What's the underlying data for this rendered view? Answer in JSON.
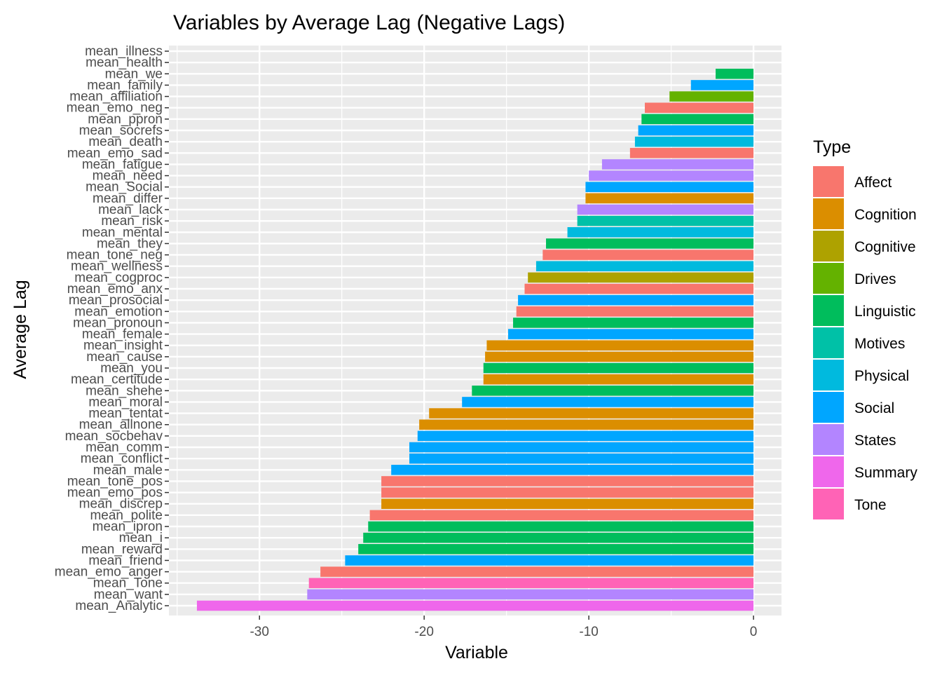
{
  "chart_data": {
    "type": "bar",
    "orientation": "horizontal",
    "title": "Variables by Average Lag (Negative Lags)",
    "xlabel": "Variable",
    "ylabel": "Average Lag",
    "xlim": [
      -35.5,
      1.7
    ],
    "x_ticks": [
      -30,
      -20,
      -10,
      0
    ],
    "grid": true,
    "legend": {
      "title": "Type",
      "position": "right",
      "items": [
        {
          "name": "Affect",
          "color": "#F8766D"
        },
        {
          "name": "Cognition",
          "color": "#DB8E00"
        },
        {
          "name": "Cognitive",
          "color": "#AEA200"
        },
        {
          "name": "Drives",
          "color": "#64B200"
        },
        {
          "name": "Linguistic",
          "color": "#00BD5C"
        },
        {
          "name": "Motives",
          "color": "#00C1A7"
        },
        {
          "name": "Physical",
          "color": "#00BADE"
        },
        {
          "name": "Social",
          "color": "#00A6FF"
        },
        {
          "name": "States",
          "color": "#B385FF"
        },
        {
          "name": "Summary",
          "color": "#EF67EB"
        },
        {
          "name": "Tone",
          "color": "#FF63B6"
        }
      ]
    },
    "categories": [
      "mean_illness",
      "mean_health",
      "mean_we",
      "mean_family",
      "mean_affiliation",
      "mean_emo_neg",
      "mean_ppron",
      "mean_socrefs",
      "mean_death",
      "mean_emo_sad",
      "mean_fatigue",
      "mean_need",
      "mean_Social",
      "mean_differ",
      "mean_lack",
      "mean_risk",
      "mean_mental",
      "mean_they",
      "mean_tone_neg",
      "mean_wellness",
      "mean_cogproc",
      "mean_emo_anx",
      "mean_prosocial",
      "mean_emotion",
      "mean_pronoun",
      "mean_female",
      "mean_insight",
      "mean_cause",
      "mean_you",
      "mean_certitude",
      "mean_shehe",
      "mean_moral",
      "mean_tentat",
      "mean_allnone",
      "mean_socbehav",
      "mean_comm",
      "mean_conflict",
      "mean_male",
      "mean_tone_pos",
      "mean_emo_pos",
      "mean_discrep",
      "mean_polite",
      "mean_ipron",
      "mean_i",
      "mean_reward",
      "mean_friend",
      "mean_emo_anger",
      "mean_Tone",
      "mean_want",
      "mean_Analytic"
    ],
    "values": [
      0,
      0,
      -2.3,
      -3.8,
      -5.1,
      -6.6,
      -6.8,
      -7.0,
      -7.2,
      -7.5,
      -9.2,
      -10.0,
      -10.2,
      -10.2,
      -10.7,
      -10.7,
      -11.3,
      -12.6,
      -12.8,
      -13.2,
      -13.7,
      -13.9,
      -14.3,
      -14.4,
      -14.6,
      -14.9,
      -16.2,
      -16.3,
      -16.4,
      -16.4,
      -17.1,
      -17.7,
      -19.7,
      -20.3,
      -20.4,
      -20.9,
      -20.9,
      -22.0,
      -22.6,
      -22.6,
      -22.6,
      -23.3,
      -23.4,
      -23.7,
      -24.0,
      -24.8,
      -26.3,
      -27.0,
      -27.1,
      -33.8
    ],
    "types": [
      "Physical",
      "Physical",
      "Linguistic",
      "Social",
      "Drives",
      "Affect",
      "Linguistic",
      "Social",
      "Physical",
      "Affect",
      "States",
      "States",
      "Social",
      "Cognition",
      "States",
      "Motives",
      "Physical",
      "Linguistic",
      "Affect",
      "Physical",
      "Cognitive",
      "Affect",
      "Social",
      "Affect",
      "Linguistic",
      "Social",
      "Cognition",
      "Cognition",
      "Linguistic",
      "Cognition",
      "Linguistic",
      "Social",
      "Cognition",
      "Cognition",
      "Social",
      "Social",
      "Social",
      "Social",
      "Affect",
      "Affect",
      "Cognition",
      "Affect",
      "Linguistic",
      "Linguistic",
      "Linguistic",
      "Social",
      "Affect",
      "Tone",
      "States",
      "Summary"
    ]
  }
}
